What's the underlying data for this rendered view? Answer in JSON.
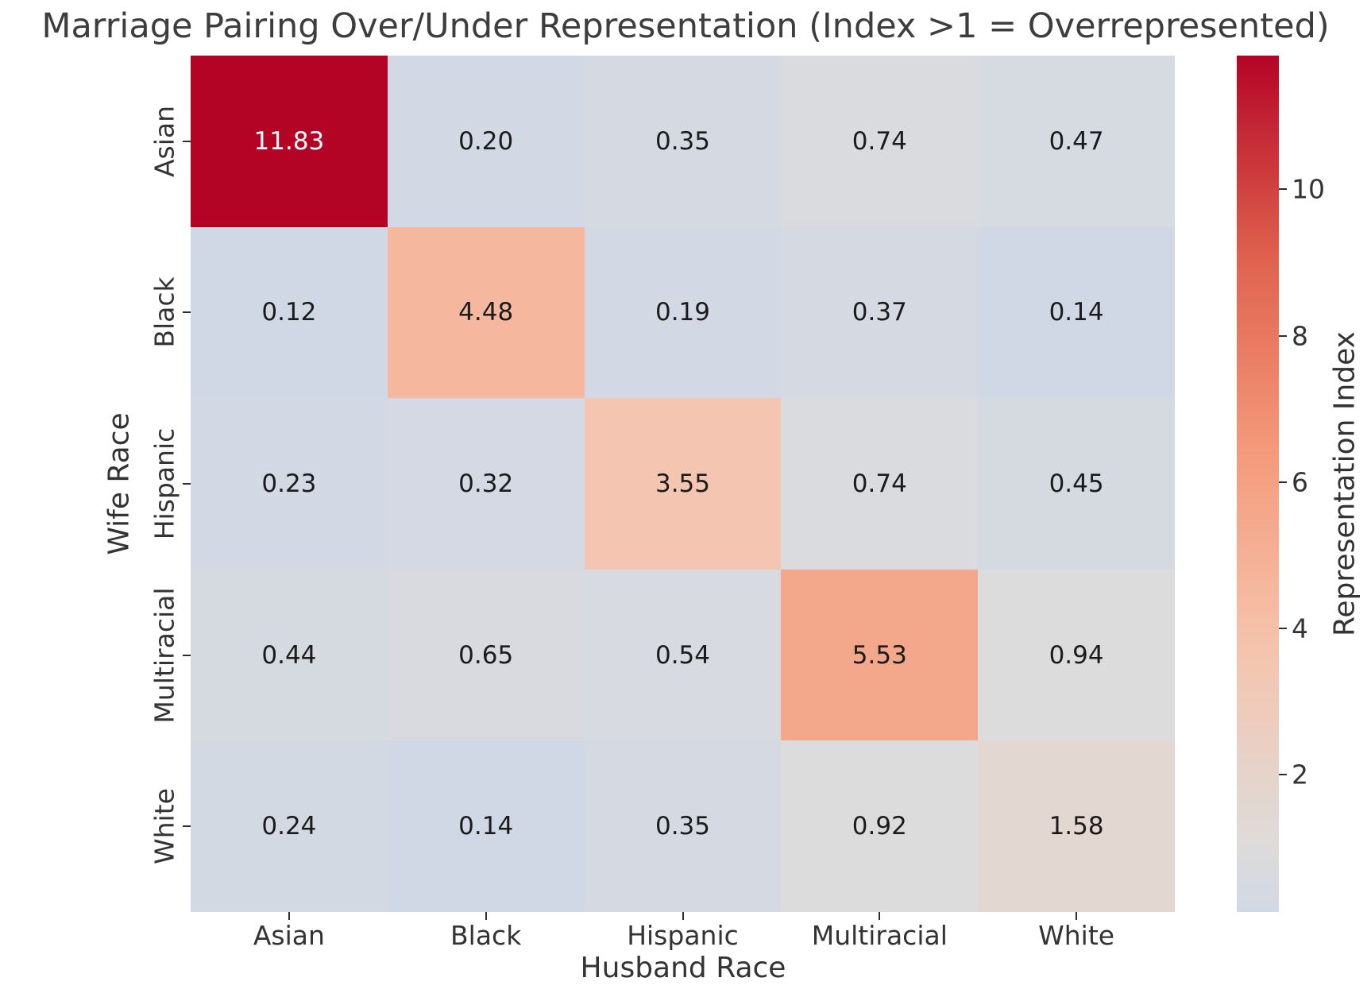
{
  "chart_data": {
    "type": "heatmap",
    "title": "Marriage Pairing Over/Under Representation (Index >1 = Overrepresented)",
    "xlabel": "Husband Race",
    "ylabel": "Wife Race",
    "x_categories": [
      "Asian",
      "Black",
      "Hispanic",
      "Multiracial",
      "White"
    ],
    "y_categories": [
      "Asian",
      "Black",
      "Hispanic",
      "Multiracial",
      "White"
    ],
    "values": [
      [
        "11.83",
        "0.20",
        "0.35",
        "0.74",
        "0.47"
      ],
      [
        "0.12",
        "4.48",
        "0.19",
        "0.37",
        "0.14"
      ],
      [
        "0.23",
        "0.32",
        "3.55",
        "0.74",
        "0.45"
      ],
      [
        "0.44",
        "0.65",
        "0.54",
        "5.53",
        "0.94"
      ],
      [
        "0.24",
        "0.14",
        "0.35",
        "0.92",
        "1.58"
      ]
    ],
    "colormap": "coolwarm",
    "center": 1,
    "vmin": 0.12,
    "vmax": 11.83,
    "grid": false,
    "annotations": true,
    "colorbar": {
      "label": "Representation Index",
      "ticks": [
        "2",
        "4",
        "6",
        "8",
        "10"
      ],
      "position": "right"
    },
    "colors": {
      "max_cell": "#b40426",
      "diagonal_salmon": "#f4a88b",
      "low_bluegray": "#d1d8e5",
      "near_one_gray": "#dcdcdc",
      "above_one_beige": "#e2d7d1",
      "text_dark": "#1b1b1b",
      "text_light": "#ffffff"
    }
  }
}
